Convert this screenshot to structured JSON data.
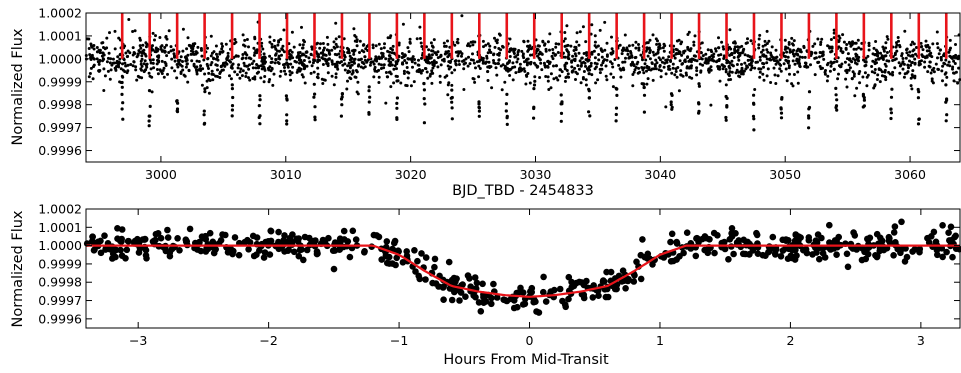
{
  "chart_data": [
    {
      "type": "scatter",
      "xlabel": "BJD_TBD - 2454833",
      "ylabel": "Normalized Flux",
      "xlim": [
        2994,
        3064
      ],
      "ylim": [
        0.99955,
        1.0002
      ],
      "xticks": [
        3000,
        3010,
        3020,
        3030,
        3040,
        3050,
        3060
      ],
      "xtick_labels": [
        "3000",
        "3010",
        "3020",
        "3030",
        "3040",
        "3050",
        "3060"
      ],
      "yticks": [
        0.9996,
        0.9997,
        0.9998,
        0.9999,
        1.0,
        1.0001,
        1.0002
      ],
      "ytick_labels": [
        "0.9996",
        "0.9997",
        "0.9998",
        "0.9999",
        "1.0000",
        "1.0001",
        "1.0002"
      ],
      "point_color": "#000000",
      "marker_color": "#e8141a",
      "transit_period_days": 2.2,
      "first_transit_time": 2996.9,
      "baseline_flux": 1.0,
      "scatter_sigma": 5e-05,
      "transit_depth": 0.00028,
      "transit_markers": [
        2996.9,
        2999.1,
        3001.3,
        3003.5,
        3005.7,
        3007.9,
        3010.1,
        3012.3,
        3014.5,
        3016.7,
        3018.9,
        3021.1,
        3023.3,
        3025.5,
        3027.7,
        3029.9,
        3032.1,
        3034.3,
        3036.5,
        3038.7,
        3040.9,
        3043.1,
        3045.3,
        3047.5,
        3049.7,
        3051.9,
        3054.1,
        3056.3,
        3058.5,
        3060.7,
        3062.9
      ],
      "marker_flux_range": [
        1.0,
        1.0002
      ]
    },
    {
      "type": "scatter",
      "xlabel": "Hours From Mid-Transit",
      "ylabel": "Normalized Flux",
      "xlim": [
        -3.4,
        3.3
      ],
      "ylim": [
        0.99955,
        1.0002
      ],
      "xticks": [
        -3,
        -2,
        -1,
        0,
        1,
        2,
        3
      ],
      "xtick_labels": [
        "−3",
        "−2",
        "−1",
        "0",
        "1",
        "2",
        "3"
      ],
      "yticks": [
        0.9996,
        0.9997,
        0.9998,
        0.9999,
        1.0,
        1.0001,
        1.0002
      ],
      "ytick_labels": [
        "0.9996",
        "0.9997",
        "0.9998",
        "0.9999",
        "1.0000",
        "1.0001",
        "1.0002"
      ],
      "point_color": "#000000",
      "model_color": "#e8141a",
      "model_curve": {
        "x": [
          -3.4,
          -1.2,
          -1.0,
          -0.8,
          -0.6,
          -0.4,
          -0.2,
          0.0,
          0.2,
          0.4,
          0.6,
          0.8,
          1.0,
          1.2,
          3.3
        ],
        "y": [
          1.0,
          1.0,
          0.99995,
          0.99986,
          0.99978,
          0.99975,
          0.99973,
          0.99972,
          0.99973,
          0.99975,
          0.99978,
          0.99986,
          0.99995,
          1.0,
          1.0
        ]
      },
      "scatter_sigma": 4e-05
    }
  ]
}
